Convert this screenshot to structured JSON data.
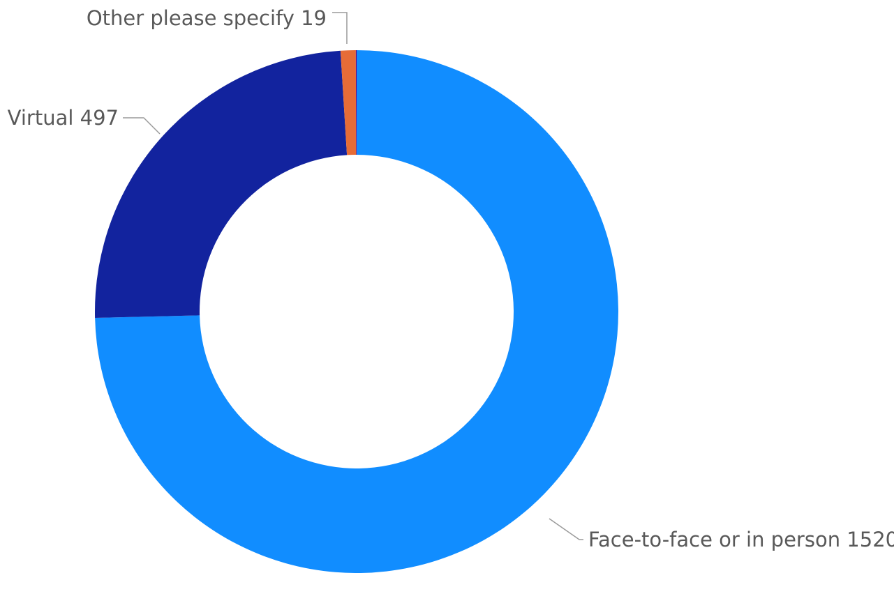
{
  "chart_data": {
    "type": "pie",
    "variant": "donut",
    "title": "",
    "legend": "none",
    "slices": [
      {
        "label": "Face-to-face or in person",
        "value": 1520,
        "color": "#118dff"
      },
      {
        "label": "Virtual",
        "value": 497,
        "color": "#12239e"
      },
      {
        "label": "Other please specify",
        "value": 19,
        "color": "#e66c37"
      },
      {
        "label": "",
        "value": 1,
        "color": "#6b007b"
      }
    ],
    "data_labels": [
      {
        "label": "Face-to-face or in person",
        "value": 1520,
        "text": "Face-to-face or in person 1520"
      },
      {
        "label": "Virtual",
        "value": 497,
        "text": "Virtual 497"
      },
      {
        "label": "Other please specify",
        "value": 19,
        "text": "Other please specify 19"
      }
    ]
  }
}
